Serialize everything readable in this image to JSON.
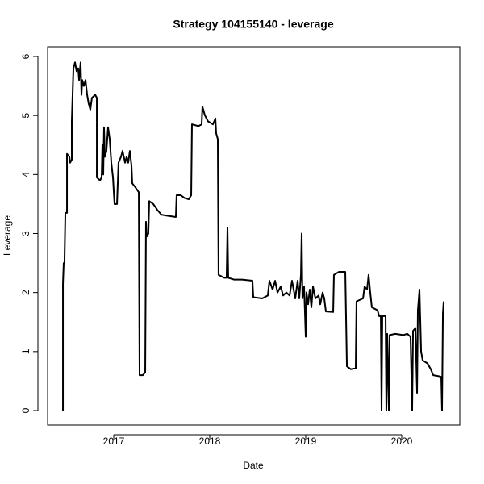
{
  "chart_data": {
    "type": "line",
    "title": "Strategy 104155140 - leverage",
    "x_label": "Date",
    "y_label": "Leverage",
    "color": "#000000",
    "xlim": [
      2016.311,
      2020.605
    ],
    "ylim": [
      -0.246,
      6.164
    ],
    "xticks": [
      2017,
      2018,
      2019,
      2020
    ],
    "yticks": [
      0,
      1,
      2,
      3,
      4,
      5,
      6
    ],
    "grid": false,
    "x": [
      2016.471,
      2016.471,
      2016.479,
      2016.487,
      2016.496,
      2016.513,
      2016.513,
      2016.538,
      2016.546,
      2016.563,
      2016.563,
      2016.58,
      2016.597,
      2016.613,
      2016.63,
      2016.639,
      2016.655,
      2016.664,
      2016.672,
      2016.689,
      2016.706,
      2016.723,
      2016.739,
      2016.756,
      2016.773,
      2016.807,
      2016.824,
      2016.824,
      2016.857,
      2016.874,
      2016.882,
      2016.891,
      2016.899,
      2016.908,
      2016.924,
      2016.941,
      2016.958,
      2016.975,
      2016.992,
      2017.008,
      2017.034,
      2017.05,
      2017.076,
      2017.092,
      2017.118,
      2017.134,
      2017.151,
      2017.168,
      2017.185,
      2017.193,
      2017.227,
      2017.261,
      2017.269,
      2017.303,
      2017.328,
      2017.336,
      2017.345,
      2017.361,
      2017.37,
      2017.412,
      2017.454,
      2017.496,
      2017.563,
      2017.647,
      2017.655,
      2017.697,
      2017.739,
      2017.782,
      2017.807,
      2017.815,
      2017.882,
      2017.916,
      2017.924,
      2017.95,
      2017.983,
      2018.034,
      2018.059,
      2018.067,
      2018.084,
      2018.092,
      2018.151,
      2018.176,
      2018.185,
      2018.193,
      2018.252,
      2018.336,
      2018.445,
      2018.454,
      2018.546,
      2018.605,
      2018.622,
      2018.655,
      2018.681,
      2018.706,
      2018.739,
      2018.765,
      2018.798,
      2018.832,
      2018.857,
      2018.891,
      2018.916,
      2018.933,
      2018.95,
      2018.958,
      2018.966,
      2018.983,
      2019.0,
      2019.008,
      2019.025,
      2019.042,
      2019.059,
      2019.076,
      2019.101,
      2019.134,
      2019.151,
      2019.176,
      2019.193,
      2019.21,
      2019.286,
      2019.294,
      2019.345,
      2019.412,
      2019.429,
      2019.471,
      2019.521,
      2019.529,
      2019.597,
      2019.613,
      2019.639,
      2019.655,
      2019.672,
      2019.689,
      2019.748,
      2019.765,
      2019.782,
      2019.79,
      2019.798,
      2019.832,
      2019.84,
      2019.849,
      2019.866,
      2019.874,
      2019.933,
      2020.017,
      2020.059,
      2020.092,
      2020.109,
      2020.118,
      2020.143,
      2020.16,
      2020.168,
      2020.185,
      2020.202,
      2020.218,
      2020.269,
      2020.303,
      2020.328,
      2020.395,
      2020.412,
      2020.42,
      2020.429,
      2020.437
    ],
    "values": [
      0,
      2.15,
      2.5,
      2.5,
      3.35,
      3.35,
      4.35,
      4.3,
      4.2,
      4.25,
      4.9,
      5.8,
      5.9,
      5.75,
      5.8,
      5.6,
      5.9,
      5.35,
      5.6,
      5.5,
      5.6,
      5.35,
      5.2,
      5.1,
      5.3,
      5.35,
      5.3,
      3.95,
      3.9,
      3.95,
      4.5,
      4.0,
      4.8,
      4.3,
      4.4,
      4.8,
      4.6,
      4.2,
      3.95,
      3.5,
      3.5,
      4.2,
      4.3,
      4.4,
      4.2,
      4.3,
      4.2,
      4.4,
      4.15,
      3.85,
      3.78,
      3.7,
      0.6,
      0.6,
      0.65,
      3.2,
      2.95,
      3.0,
      3.55,
      3.5,
      3.4,
      3.32,
      3.3,
      3.28,
      3.65,
      3.65,
      3.6,
      3.58,
      3.65,
      4.85,
      4.82,
      4.85,
      5.15,
      5.0,
      4.9,
      4.85,
      4.95,
      4.7,
      4.6,
      2.3,
      2.25,
      2.25,
      3.1,
      2.25,
      2.22,
      2.22,
      2.2,
      1.92,
      1.9,
      1.95,
      2.2,
      2.05,
      2.2,
      2.0,
      2.1,
      1.95,
      2.0,
      1.95,
      2.2,
      1.9,
      2.2,
      1.9,
      2.3,
      3.0,
      1.9,
      2.1,
      1.25,
      2.0,
      1.8,
      2.05,
      1.75,
      2.1,
      1.9,
      1.95,
      1.8,
      2.0,
      1.9,
      1.68,
      1.67,
      2.3,
      2.35,
      2.35,
      0.75,
      0.7,
      0.72,
      1.85,
      1.9,
      2.1,
      2.05,
      2.3,
      2.0,
      1.75,
      1.7,
      1.6,
      1.6,
      0,
      1.6,
      1.6,
      0,
      1.3,
      0,
      1.28,
      1.3,
      1.28,
      1.3,
      1.25,
      0,
      1.35,
      1.4,
      0.3,
      1.7,
      2.05,
      1.0,
      0.85,
      0.8,
      0.7,
      0.6,
      0.58,
      0.57,
      0,
      1.65,
      1.85
    ]
  }
}
